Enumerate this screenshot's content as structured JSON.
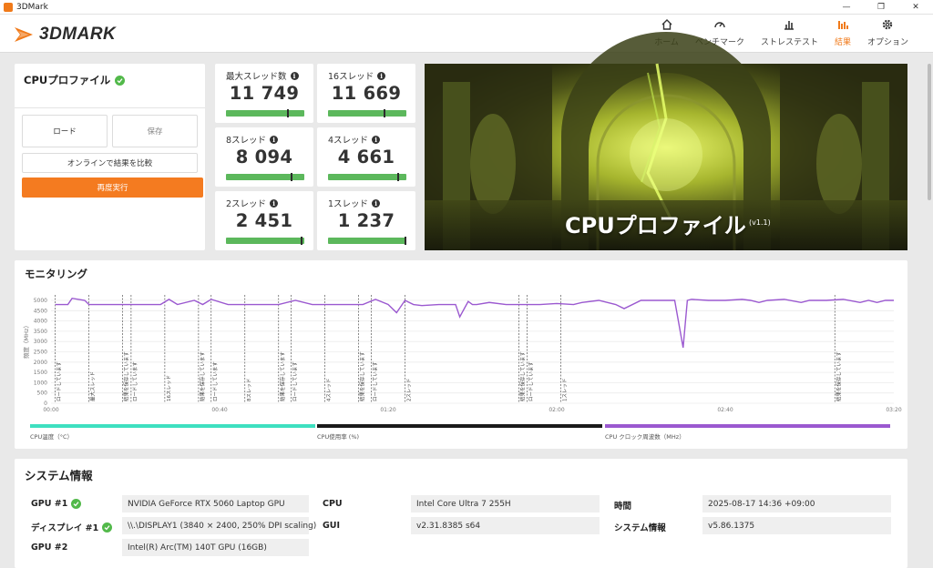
{
  "window": {
    "title": "3DMark"
  },
  "app": {
    "logo_text": "3DMARK"
  },
  "nav": [
    {
      "label": "ホーム",
      "icon": "home-icon",
      "active": false
    },
    {
      "label": "ベンチマーク",
      "icon": "gauge-icon",
      "active": false
    },
    {
      "label": "ストレステスト",
      "icon": "bar-graph-icon",
      "active": false
    },
    {
      "label": "結果",
      "icon": "results-icon",
      "active": true
    },
    {
      "label": "オプション",
      "icon": "gear-icon",
      "active": false
    }
  ],
  "profile": {
    "title": "CPUプロファイル",
    "load_label": "ロード",
    "save_label": "保存",
    "compare_label": "オンラインで結果を比較",
    "rerun_label": "再度実行"
  },
  "scores": [
    {
      "label": "最大スレッド数",
      "value": "11 749",
      "bar_fraction": 0.78
    },
    {
      "label": "16スレッド",
      "value": "11 669",
      "bar_fraction": 0.71
    },
    {
      "label": "8スレッド",
      "value": "8 094",
      "bar_fraction": 0.82
    },
    {
      "label": "4スレッド",
      "value": "4 661",
      "bar_fraction": 0.88
    },
    {
      "label": "2スレッド",
      "value": "2 451",
      "bar_fraction": 0.95
    },
    {
      "label": "1スレッド",
      "value": "1 237",
      "bar_fraction": 0.98
    }
  ],
  "hero": {
    "title": "CPUプロファイル",
    "version": "(v1.1)"
  },
  "monitoring": {
    "title": "モニタリング",
    "legends": [
      {
        "label": "CPU温度（°C）",
        "color": "#3ee0c0"
      },
      {
        "label": "CPU使用率 (%)",
        "color": "#1a1a1a"
      },
      {
        "label": "CPU クロック周波数（MHz）",
        "color": "#9b59d0"
      }
    ]
  },
  "chart_data": {
    "type": "line",
    "ylabel": "頻度（MHz）",
    "ylim": [
      0,
      5000
    ],
    "yticks": [
      "0",
      "500",
      "1000",
      "1500",
      "2000",
      "2500",
      "3000",
      "3500",
      "4000",
      "4500",
      "5000"
    ],
    "xticks": [
      "00:00",
      "00:40",
      "01:20",
      "02:00",
      "02:40",
      "03:20"
    ],
    "xlim": [
      0,
      200
    ],
    "series": [
      {
        "name": "CPU クロック周波数（MHz）",
        "x": [
          1,
          4,
          5,
          8,
          9,
          14,
          18,
          26,
          28,
          30,
          34,
          36,
          38,
          42,
          48,
          54,
          58,
          62,
          68,
          74,
          77,
          80,
          82,
          84,
          86,
          88,
          92,
          96,
          97,
          99,
          100,
          101,
          104,
          108,
          112,
          116,
          120,
          124,
          126,
          130,
          134,
          136,
          140,
          144,
          148,
          150,
          151,
          152,
          156,
          160,
          164,
          166,
          168,
          170,
          174,
          178,
          180,
          184,
          188,
          192,
          194,
          196,
          198,
          200
        ],
        "values": [
          4800,
          4800,
          5100,
          5000,
          4800,
          4800,
          4800,
          4800,
          5050,
          4800,
          5000,
          4800,
          5050,
          4800,
          4800,
          4800,
          5000,
          4800,
          4800,
          4800,
          5050,
          4800,
          4400,
          5000,
          4800,
          4750,
          4800,
          4800,
          4200,
          4950,
          4800,
          4800,
          4900,
          4800,
          4800,
          4800,
          4850,
          4800,
          4900,
          5000,
          4800,
          4600,
          5000,
          5000,
          5000,
          2700,
          5000,
          5050,
          5000,
          5000,
          5050,
          5000,
          4900,
          5000,
          5050,
          4900,
          5000,
          5000,
          5050,
          4900,
          5000,
          4900,
          5000,
          5000
        ]
      }
    ],
    "phase_markers": [
      {
        "x": 1,
        "label": "ロードしています"
      },
      {
        "x": 9,
        "label": "最大スレッド"
      },
      {
        "x": 17,
        "label": "結果を保存しています"
      },
      {
        "x": 19,
        "label": "ロードしています"
      },
      {
        "x": 27,
        "label": "16スレッド"
      },
      {
        "x": 35,
        "label": "結果を保存しています"
      },
      {
        "x": 38,
        "label": "ロードしています"
      },
      {
        "x": 46,
        "label": "8スレッド"
      },
      {
        "x": 54,
        "label": "結果を保存しています"
      },
      {
        "x": 57,
        "label": "ロードしています"
      },
      {
        "x": 65,
        "label": "4スレッド"
      },
      {
        "x": 73,
        "label": "結果を保存しています"
      },
      {
        "x": 76,
        "label": "ロードしています"
      },
      {
        "x": 84,
        "label": "2スレッド"
      },
      {
        "x": 111,
        "label": "結果を保存しています"
      },
      {
        "x": 113,
        "label": "ロードしています"
      },
      {
        "x": 121,
        "label": "1スレッド"
      },
      {
        "x": 186,
        "label": "結果を保存しています"
      }
    ]
  },
  "system": {
    "title": "システム情報",
    "rows": [
      [
        {
          "label": "GPU #1",
          "value": "NVIDIA GeForce RTX 5060 Laptop GPU",
          "check": true
        },
        {
          "label": "CPU",
          "value": "Intel Core Ultra 7 255H",
          "check": false
        },
        {
          "label": "時間",
          "value": "2025-08-17 14:36 +09:00",
          "check": false
        }
      ],
      [
        {
          "label": "ディスプレイ #1",
          "value": "\\\\.\\DISPLAY1 (3840 × 2400, 250% DPI scaling)",
          "check": true
        },
        {
          "label": "GUI",
          "value": "v2.31.8385 s64",
          "check": false
        },
        {
          "label": "システム情報",
          "value": "v5.86.1375",
          "check": false
        }
      ],
      [
        {
          "label": "GPU #2",
          "value": "Intel(R) Arc(TM) 140T GPU (16GB)",
          "check": false
        }
      ]
    ]
  }
}
